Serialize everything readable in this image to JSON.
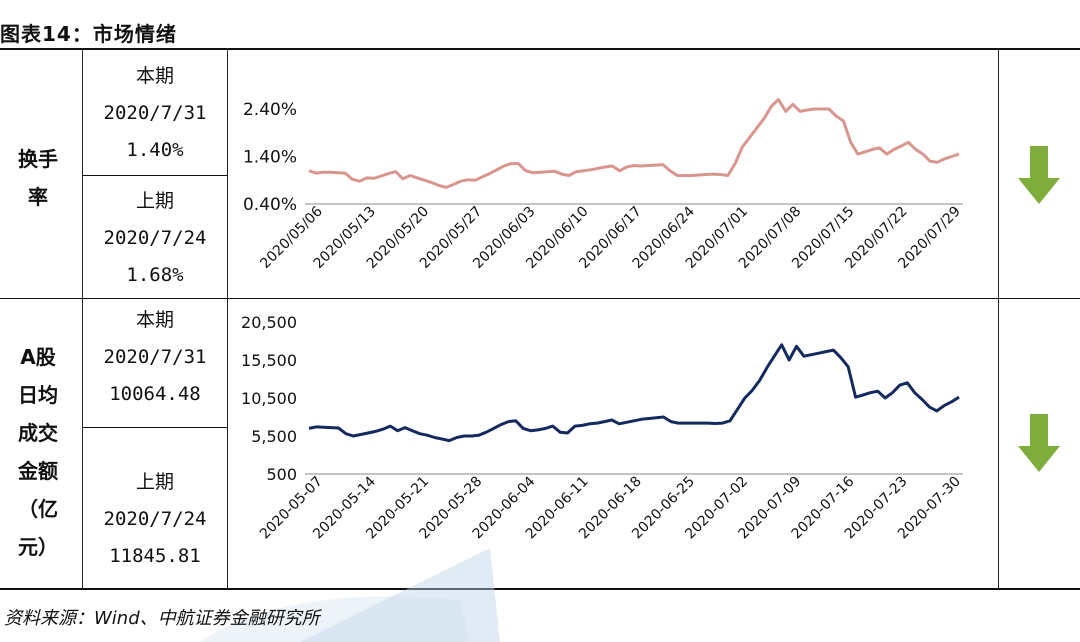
{
  "title": "图表14：市场情绪",
  "source": "资料来源：Wind、中航证券金融研究所",
  "rows": [
    {
      "label": "换手率",
      "current": {
        "label": "本期",
        "date": "2020/7/31",
        "value": "1.40%"
      },
      "previous": {
        "label": "上期",
        "date": "2020/7/24",
        "value": "1.68%"
      },
      "trend_icon": "down-arrow-icon"
    },
    {
      "label": "A股日均成交金额（亿元）",
      "current": {
        "label": "本期",
        "date": "2020/7/31",
        "value": "10064.48"
      },
      "previous": {
        "label": "上期",
        "date": "2020/7/24",
        "value": "11845.81"
      },
      "trend_icon": "down-arrow-icon"
    }
  ],
  "colors": {
    "turnover_line": "#d9968f",
    "volume_line": "#142a5e",
    "arrow": "#7fad3c"
  },
  "chart_data": [
    {
      "type": "line",
      "yticks": [
        "2.40%",
        "1.40%",
        "0.40%"
      ],
      "ylim": [
        0.4,
        2.4
      ],
      "xticks": [
        "2020/05/06",
        "2020/05/13",
        "2020/05/20",
        "2020/05/27",
        "2020/06/03",
        "2020/06/10",
        "2020/06/17",
        "2020/06/24",
        "2020/07/01",
        "2020/07/08",
        "2020/07/15",
        "2020/07/22",
        "2020/07/29"
      ],
      "series": [
        {
          "values": [
            1.1,
            1.05,
            1.07,
            1.07,
            1.06,
            1.05,
            0.92,
            0.88,
            0.95,
            0.94,
            0.99,
            1.04,
            1.08,
            0.93,
            1.0,
            0.95,
            0.9,
            0.85,
            0.79,
            0.75,
            0.81,
            0.88,
            0.91,
            0.9,
            0.97,
            1.04,
            1.12,
            1.2,
            1.25,
            1.25,
            1.1,
            1.06,
            1.07,
            1.08,
            1.09,
            1.03,
            1.0,
            1.08,
            1.1,
            1.12,
            1.15,
            1.18,
            1.2,
            1.1,
            1.18,
            1.21,
            1.2,
            1.21,
            1.22,
            1.23,
            1.1,
            1.0,
            1.0,
            1.0,
            1.01,
            1.02,
            1.03,
            1.02,
            1.0,
            1.25,
            1.6,
            1.8,
            2.0,
            2.2,
            2.45,
            2.6,
            2.35,
            2.5,
            2.35,
            2.38,
            2.4,
            2.4,
            2.4,
            2.25,
            2.15,
            1.7,
            1.45,
            1.5,
            1.55,
            1.58,
            1.45,
            1.55,
            1.62,
            1.7,
            1.55,
            1.45,
            1.3,
            1.28,
            1.35,
            1.4,
            1.45
          ]
        }
      ]
    },
    {
      "type": "line",
      "yticks": [
        "20,500",
        "15,500",
        "10,500",
        "5,500",
        "500"
      ],
      "ylim": [
        500,
        20500
      ],
      "xticks": [
        "2020-05-07",
        "2020-05-14",
        "2020-05-21",
        "2020-05-28",
        "2020-06-04",
        "2020-06-11",
        "2020-06-18",
        "2020-06-25",
        "2020-07-02",
        "2020-07-09",
        "2020-07-16",
        "2020-07-23",
        "2020-07-30"
      ],
      "series": [
        {
          "values": [
            6500,
            6700,
            6650,
            6600,
            6550,
            5800,
            5500,
            5700,
            5900,
            6100,
            6400,
            6800,
            6200,
            6600,
            6200,
            5800,
            5600,
            5300,
            5100,
            4900,
            5300,
            5500,
            5500,
            5600,
            6000,
            6500,
            7000,
            7400,
            7500,
            6500,
            6200,
            6300,
            6500,
            6800,
            6000,
            5900,
            6800,
            6900,
            7100,
            7200,
            7400,
            7600,
            7100,
            7300,
            7500,
            7700,
            7800,
            7900,
            8000,
            7400,
            7200,
            7200,
            7200,
            7200,
            7200,
            7150,
            7200,
            7500,
            9000,
            10500,
            11500,
            12800,
            14500,
            16000,
            17500,
            15500,
            17300,
            16000,
            16200,
            16400,
            16600,
            16800,
            15800,
            14600,
            10600,
            10900,
            11200,
            11400,
            10500,
            11200,
            12200,
            12500,
            11200,
            10300,
            9300,
            8800,
            9500,
            10000,
            10600
          ]
        }
      ]
    }
  ]
}
